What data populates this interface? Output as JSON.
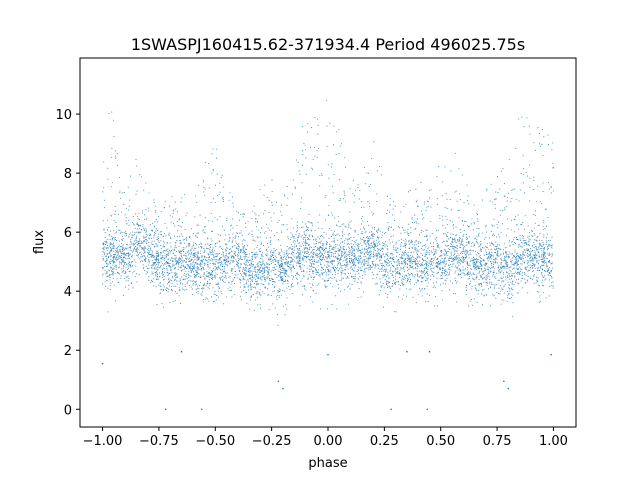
{
  "chart_data": {
    "type": "scatter",
    "title": "1SWASPJ160415.62-371934.4 Period 496025.75s",
    "xlabel": "phase",
    "ylabel": "flux",
    "xlim": [
      -1.1,
      1.1
    ],
    "ylim": [
      -0.6,
      11.9
    ],
    "xticks": [
      -1.0,
      -0.75,
      -0.5,
      -0.25,
      0.0,
      0.25,
      0.5,
      0.75,
      1.0
    ],
    "xtick_labels": [
      "−1.00",
      "−0.75",
      "−0.50",
      "−0.25",
      "0.00",
      "0.25",
      "0.50",
      "0.75",
      "1.00"
    ],
    "yticks": [
      0,
      2,
      4,
      6,
      8,
      10
    ],
    "ytick_labels": [
      "0",
      "2",
      "4",
      "6",
      "8",
      "10"
    ],
    "grid": false,
    "marker_color": "#1f77b4",
    "series": [
      {
        "profile_x": [
          -1.0,
          -0.95,
          -0.9,
          -0.85,
          -0.8,
          -0.75,
          -0.7,
          -0.65,
          -0.6,
          -0.55,
          -0.5,
          -0.45,
          -0.4,
          -0.35,
          -0.3,
          -0.25,
          -0.2,
          -0.15,
          -0.1,
          -0.05,
          0.0,
          0.05,
          0.1,
          0.15,
          0.2,
          0.25,
          0.3,
          0.35,
          0.4,
          0.45,
          0.5,
          0.55,
          0.6,
          0.65,
          0.7,
          0.75,
          0.8,
          0.85,
          0.9,
          0.95,
          1.0
        ],
        "profile_center": [
          5.0,
          5.2,
          5.1,
          5.6,
          5.3,
          5.0,
          4.8,
          5.0,
          4.9,
          4.8,
          4.7,
          5.0,
          5.0,
          4.7,
          4.6,
          4.8,
          4.6,
          5.1,
          5.3,
          5.1,
          4.9,
          5.2,
          5.0,
          5.1,
          5.4,
          5.0,
          4.8,
          5.0,
          4.9,
          4.8,
          4.9,
          5.1,
          5.0,
          4.8,
          4.7,
          4.9,
          4.6,
          5.1,
          5.2,
          5.0,
          5.0
        ],
        "envelope_low": [
          3.3,
          3.3,
          3.5,
          3.6,
          3.7,
          3.5,
          3.4,
          3.6,
          3.5,
          3.4,
          3.5,
          3.6,
          3.7,
          3.4,
          3.3,
          3.4,
          2.4,
          3.5,
          3.5,
          3.4,
          3.4,
          3.4,
          3.6,
          3.6,
          3.6,
          3.4,
          3.3,
          3.3,
          3.6,
          3.5,
          3.5,
          3.5,
          3.6,
          3.4,
          3.3,
          3.4,
          2.5,
          3.5,
          3.4,
          3.3,
          3.3
        ],
        "envelope_high": [
          10.5,
          10.2,
          7.5,
          8.5,
          7.5,
          7.0,
          7.2,
          7.5,
          7.0,
          8.5,
          9.0,
          7.5,
          7.0,
          6.5,
          7.5,
          8.0,
          7.5,
          8.5,
          10.0,
          10.5,
          10.5,
          10.0,
          8.0,
          8.0,
          9.5,
          7.5,
          7.0,
          7.5,
          8.0,
          7.5,
          8.5,
          9.0,
          8.0,
          7.0,
          7.5,
          8.0,
          8.5,
          10.0,
          10.5,
          9.5,
          9.5
        ],
        "outliers": [
          {
            "x": -0.72,
            "y": 0.0
          },
          {
            "x": -0.56,
            "y": 0.0
          },
          {
            "x": 0.28,
            "y": 0.0
          },
          {
            "x": 0.44,
            "y": 0.0
          },
          {
            "x": -1.0,
            "y": 1.55
          },
          {
            "x": -0.65,
            "y": 1.95
          },
          {
            "x": -0.22,
            "y": 0.95
          },
          {
            "x": -0.2,
            "y": 0.7
          },
          {
            "x": 0.0,
            "y": 1.85
          },
          {
            "x": 0.35,
            "y": 1.95
          },
          {
            "x": 0.78,
            "y": 0.95
          },
          {
            "x": 0.8,
            "y": 0.7
          },
          {
            "x": 0.99,
            "y": 1.85
          },
          {
            "x": 0.45,
            "y": 1.95
          }
        ]
      }
    ]
  }
}
